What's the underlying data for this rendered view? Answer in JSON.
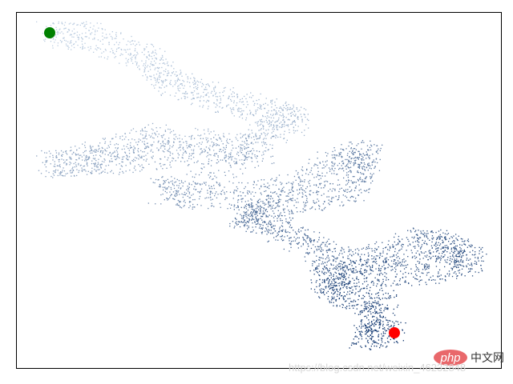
{
  "chart_data": {
    "type": "scatter",
    "title": "",
    "xlabel": "",
    "ylabel": "",
    "axes_visible": false,
    "grid": false,
    "xlim": [
      -42,
      563
    ],
    "ylim": [
      -419,
      26
    ],
    "colormap": "Blues",
    "color_by": "point order",
    "walk_path_approx": [
      [
        0,
        0
      ],
      [
        48,
        -4
      ],
      [
        118,
        -29
      ],
      [
        148,
        -59
      ],
      [
        198,
        -79
      ],
      [
        268,
        -99
      ],
      [
        308,
        -109
      ],
      [
        238,
        -144
      ],
      [
        138,
        -129
      ],
      [
        68,
        -149
      ],
      [
        -2,
        -164
      ],
      [
        78,
        -159
      ],
      [
        158,
        -149
      ],
      [
        268,
        -144
      ],
      [
        138,
        -199
      ],
      [
        198,
        -204
      ],
      [
        288,
        -199
      ],
      [
        358,
        -159
      ],
      [
        398,
        -149
      ],
      [
        378,
        -199
      ],
      [
        298,
        -209
      ],
      [
        238,
        -229
      ],
      [
        268,
        -234
      ],
      [
        318,
        -259
      ],
      [
        358,
        -289
      ],
      [
        408,
        -279
      ],
      [
        468,
        -259
      ],
      [
        498,
        -269
      ],
      [
        528,
        -284
      ],
      [
        458,
        -299
      ],
      [
        388,
        -299
      ],
      [
        338,
        -309
      ],
      [
        368,
        -329
      ],
      [
        418,
        -339
      ],
      [
        388,
        -379
      ],
      [
        430,
        -375
      ]
    ],
    "start_point": {
      "x": 0,
      "y": 0,
      "color": "#008000"
    },
    "end_point": {
      "x": 430,
      "y": -375,
      "color": "#ff0000"
    }
  },
  "watermark": {
    "url": "https://blog.csdn.net/weixin_46232848",
    "logo_php": "php",
    "logo_cn": "中文网"
  }
}
